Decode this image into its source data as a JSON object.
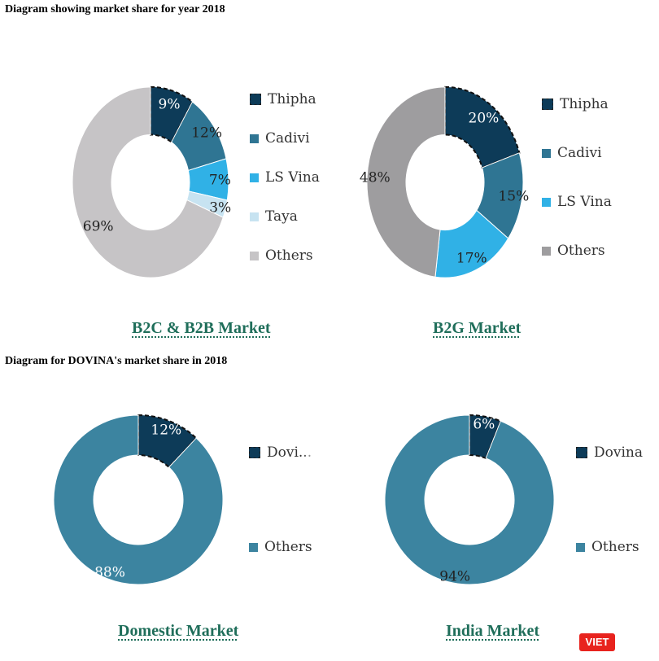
{
  "headings": {
    "first": "Diagram showing market share for year 2018",
    "second": "Diagram for DOVINA's market share in 2018"
  },
  "colors": {
    "thipha": "#0d3b58",
    "cadivi": "#2f7593",
    "ls_vina": "#30b1e6",
    "taya": "#c7e3f1",
    "others_gray": "#c6c4c6",
    "others_dark_gray": "#9e9d9f",
    "dovina_others": "#3c84a0",
    "caption": "#1f6e5a"
  },
  "chart_data": [
    {
      "type": "pie",
      "title": "B2C & B2B Market",
      "categories": [
        "Thipha",
        "Cadivi",
        "LS Vina",
        "Taya",
        "Others"
      ],
      "values": [
        9,
        12,
        7,
        3,
        69
      ],
      "labels": [
        "9%",
        "12%",
        "7%",
        "3%",
        "69%"
      ],
      "legend": [
        "Thipha",
        "Cadivi",
        "LS Vina",
        "Taya",
        "Others"
      ]
    },
    {
      "type": "pie",
      "title": "B2G Market",
      "categories": [
        "Thipha",
        "Cadivi",
        "LS Vina",
        "Others"
      ],
      "values": [
        20,
        15,
        17,
        48
      ],
      "labels": [
        "20%",
        "15%",
        "17%",
        "48%"
      ],
      "legend": [
        "Thipha",
        "Cadivi",
        "LS Vina",
        "Others"
      ]
    },
    {
      "type": "pie",
      "title": "Domestic Market",
      "categories": [
        "Dovina",
        "Others"
      ],
      "values": [
        12,
        88
      ],
      "labels": [
        "12%",
        "88%"
      ],
      "legend": [
        "Dovi...",
        "Others"
      ]
    },
    {
      "type": "pie",
      "title": "India Market",
      "categories": [
        "Dovina",
        "Others"
      ],
      "values": [
        6,
        94
      ],
      "labels": [
        "6%",
        "94%"
      ],
      "legend": [
        "Dovina",
        "Others"
      ]
    }
  ],
  "watermark": {
    "label": "VIET"
  }
}
